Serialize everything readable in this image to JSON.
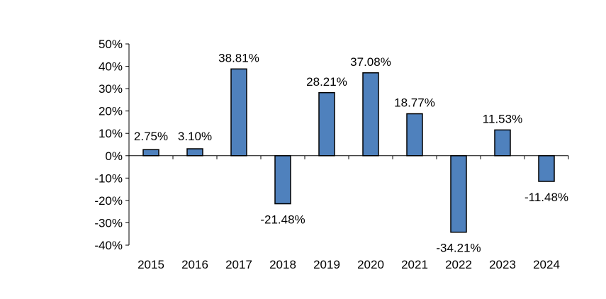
{
  "chart_data": {
    "type": "bar",
    "title": "",
    "xlabel": "",
    "ylabel": "",
    "categories": [
      "2015",
      "2016",
      "2017",
      "2018",
      "2019",
      "2020",
      "2021",
      "2022",
      "2023",
      "2024"
    ],
    "values": [
      2.75,
      3.1,
      38.81,
      -21.48,
      28.21,
      37.08,
      18.77,
      -34.21,
      11.53,
      -11.48
    ],
    "data_labels": [
      "2.75%",
      "3.10%",
      "38.81%",
      "-21.48%",
      "28.21%",
      "37.08%",
      "18.77%",
      "-34.21%",
      "11.53%",
      "-11.48%"
    ],
    "ylim": [
      -40,
      50
    ],
    "y_ticks": [
      50,
      40,
      30,
      20,
      10,
      0,
      -10,
      -20,
      -30,
      -40
    ],
    "y_tick_labels": [
      "50%",
      "40%",
      "30%",
      "20%",
      "10%",
      "0%",
      "-10%",
      "-20%",
      "-30%",
      "-40%"
    ],
    "grid": false,
    "legend": "none",
    "bar_color": "#4f81bd",
    "bar_edge_color": "#000000"
  }
}
